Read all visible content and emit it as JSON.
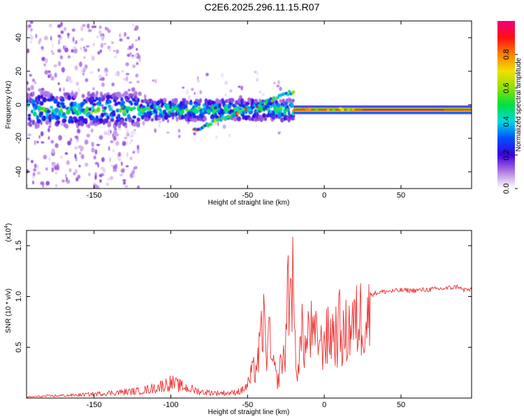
{
  "title": "C2E6.2025.296.11.15.R07",
  "chart_data": [
    {
      "type": "heatmap",
      "title": "C2E6.2025.296.11.15.R07",
      "xlabel": "Height of straight line (km)",
      "ylabel": "Frequency (Hz)",
      "xlim": [
        -194,
        96
      ],
      "ylim": [
        -50,
        50
      ],
      "x_ticks": [
        -150,
        -100,
        -50,
        0,
        50
      ],
      "x_tick_labels": [
        "-150",
        "-100",
        "-50",
        "0",
        "50"
      ],
      "y_ticks": [
        -40,
        -20,
        0,
        20,
        40
      ],
      "y_tick_labels": [
        "-40",
        "-20",
        "0",
        "20",
        "40"
      ],
      "colorbar": {
        "label": "Normalized spectral amplitude",
        "range": [
          0.0,
          1.0
        ],
        "ticks": [
          0.0,
          0.2,
          0.4,
          0.6,
          0.8
        ],
        "tick_labels": [
          "0.0",
          "0.2",
          "0.4",
          "0.6",
          "0.8"
        ]
      },
      "features": [
        {
          "name": "main band",
          "x_range": [
            -194,
            96
          ],
          "freq_hz": -3,
          "peak_amplitude": 1.0,
          "peak_x_range": [
            -20,
            78
          ]
        },
        {
          "name": "upper branch",
          "x_range": [
            -85,
            -20
          ],
          "freq_hz_start": -15,
          "freq_hz_end": 8,
          "peak_amplitude": 0.9
        },
        {
          "name": "diffuse scatter",
          "x_range": [
            -194,
            -120
          ],
          "freq_hz_range": [
            -50,
            50
          ],
          "peak_amplitude": 0.2
        }
      ]
    },
    {
      "type": "line",
      "xlabel": "Height of straight line (km)",
      "ylabel": "SNR (10 * v/v)",
      "multiplier_label": "(x10",
      "multiplier_exponent": "4",
      "multiplier_close": ")",
      "xlim": [
        -194,
        96
      ],
      "ylim": [
        0,
        1.65
      ],
      "x_ticks": [
        -150,
        -100,
        -50,
        0,
        50
      ],
      "x_tick_labels": [
        "-150",
        "-100",
        "-50",
        "0",
        "50"
      ],
      "y_ticks": [
        0.5,
        1.0,
        1.5
      ],
      "y_tick_labels": [
        "0.5",
        "1.0",
        "1.5"
      ],
      "color": "#ef3030",
      "series": [
        {
          "name": "SNR",
          "x": [
            -194,
            -180,
            -160,
            -140,
            -120,
            -110,
            -100,
            -90,
            -80,
            -70,
            -60,
            -55,
            -50,
            -47,
            -45,
            -42,
            -40,
            -38,
            -36,
            -34,
            -32,
            -30,
            -28,
            -26,
            -24,
            -22,
            -21,
            -20,
            -18,
            -16,
            -14,
            -12,
            -10,
            -8,
            -6,
            -4,
            -2,
            0,
            2,
            5,
            8,
            10,
            12,
            15,
            18,
            20,
            22,
            25,
            30,
            35,
            40,
            50,
            60,
            70,
            80,
            88,
            90,
            92,
            96
          ],
          "y": [
            0.01,
            0.02,
            0.03,
            0.05,
            0.07,
            0.1,
            0.15,
            0.1,
            0.06,
            0.05,
            0.05,
            0.07,
            0.15,
            0.3,
            0.35,
            0.55,
            0.95,
            0.6,
            0.7,
            0.4,
            0.3,
            0.2,
            0.5,
            0.4,
            1.25,
            1.3,
            1.65,
            0.9,
            0.35,
            0.55,
            0.8,
            0.55,
            0.85,
            0.75,
            0.65,
            0.8,
            0.6,
            0.75,
            0.7,
            0.8,
            0.75,
            0.85,
            0.7,
            0.8,
            0.9,
            0.85,
            0.95,
            0.98,
            1.02,
            1.04,
            1.05,
            1.06,
            1.06,
            1.07,
            1.08,
            1.1,
            1.06,
            1.07,
            1.06
          ]
        }
      ]
    }
  ]
}
